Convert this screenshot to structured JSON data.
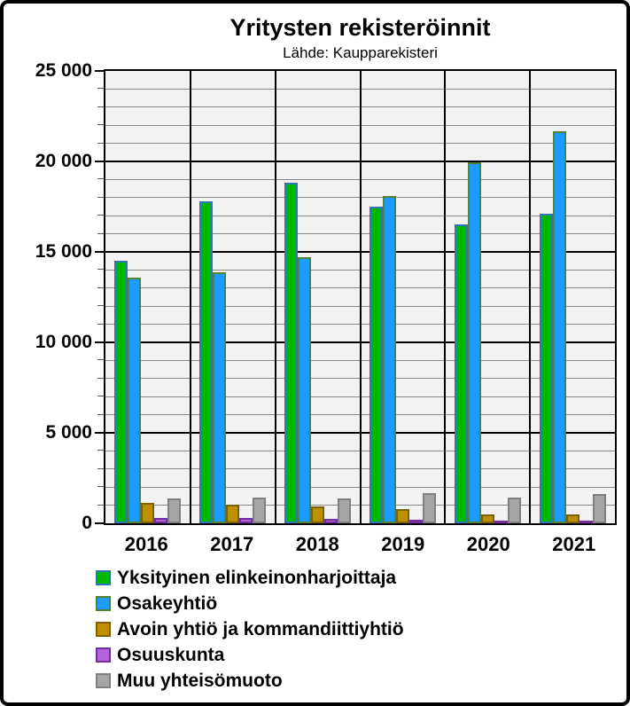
{
  "title": "Yritysten rekisteröinnit",
  "subtitle": "Lähde: Kaupparekisteri",
  "chart_data": {
    "type": "bar",
    "title": "Yritysten rekisteröinnit",
    "subtitle": "Lähde: Kaupparekisteri",
    "categories": [
      "2016",
      "2017",
      "2018",
      "2019",
      "2020",
      "2021"
    ],
    "series": [
      {
        "name": "Yksityinen elinkeinonharjoittaja",
        "fill": "#00B800",
        "border": "#2E75B6",
        "values": [
          14500,
          17800,
          18800,
          17500,
          16500,
          17100
        ]
      },
      {
        "name": "Osakeyhtiö",
        "fill": "#1E9BFF",
        "border": "#538135",
        "values": [
          13600,
          13850,
          14700,
          18100,
          19950,
          21650
        ]
      },
      {
        "name": "Avoin yhtiö ja kommandiittiyhtiö",
        "fill": "#BF8F00",
        "border": "#7F6000",
        "values": [
          1150,
          1050,
          950,
          780,
          480,
          500
        ]
      },
      {
        "name": "Osuuskunta",
        "fill": "#B266D9",
        "border": "#7030A0",
        "values": [
          300,
          280,
          250,
          210,
          130,
          130
        ]
      },
      {
        "name": "Muu yhteisömuoto",
        "fill": "#A6A6A6",
        "border": "#7F7F7F",
        "values": [
          1350,
          1400,
          1350,
          1650,
          1430,
          1600
        ]
      }
    ],
    "xlabel": "",
    "ylabel": "",
    "ylim": [
      0,
      25000
    ],
    "major_step": 5000,
    "minor_step": 1000,
    "ytick_labels": [
      "0",
      "5 000",
      "10 000",
      "15 000",
      "20 000",
      "25 000"
    ],
    "grid": "major-black-minor-gray",
    "legend_position": "bottom-left",
    "plot_background": "#F2F2F2"
  }
}
